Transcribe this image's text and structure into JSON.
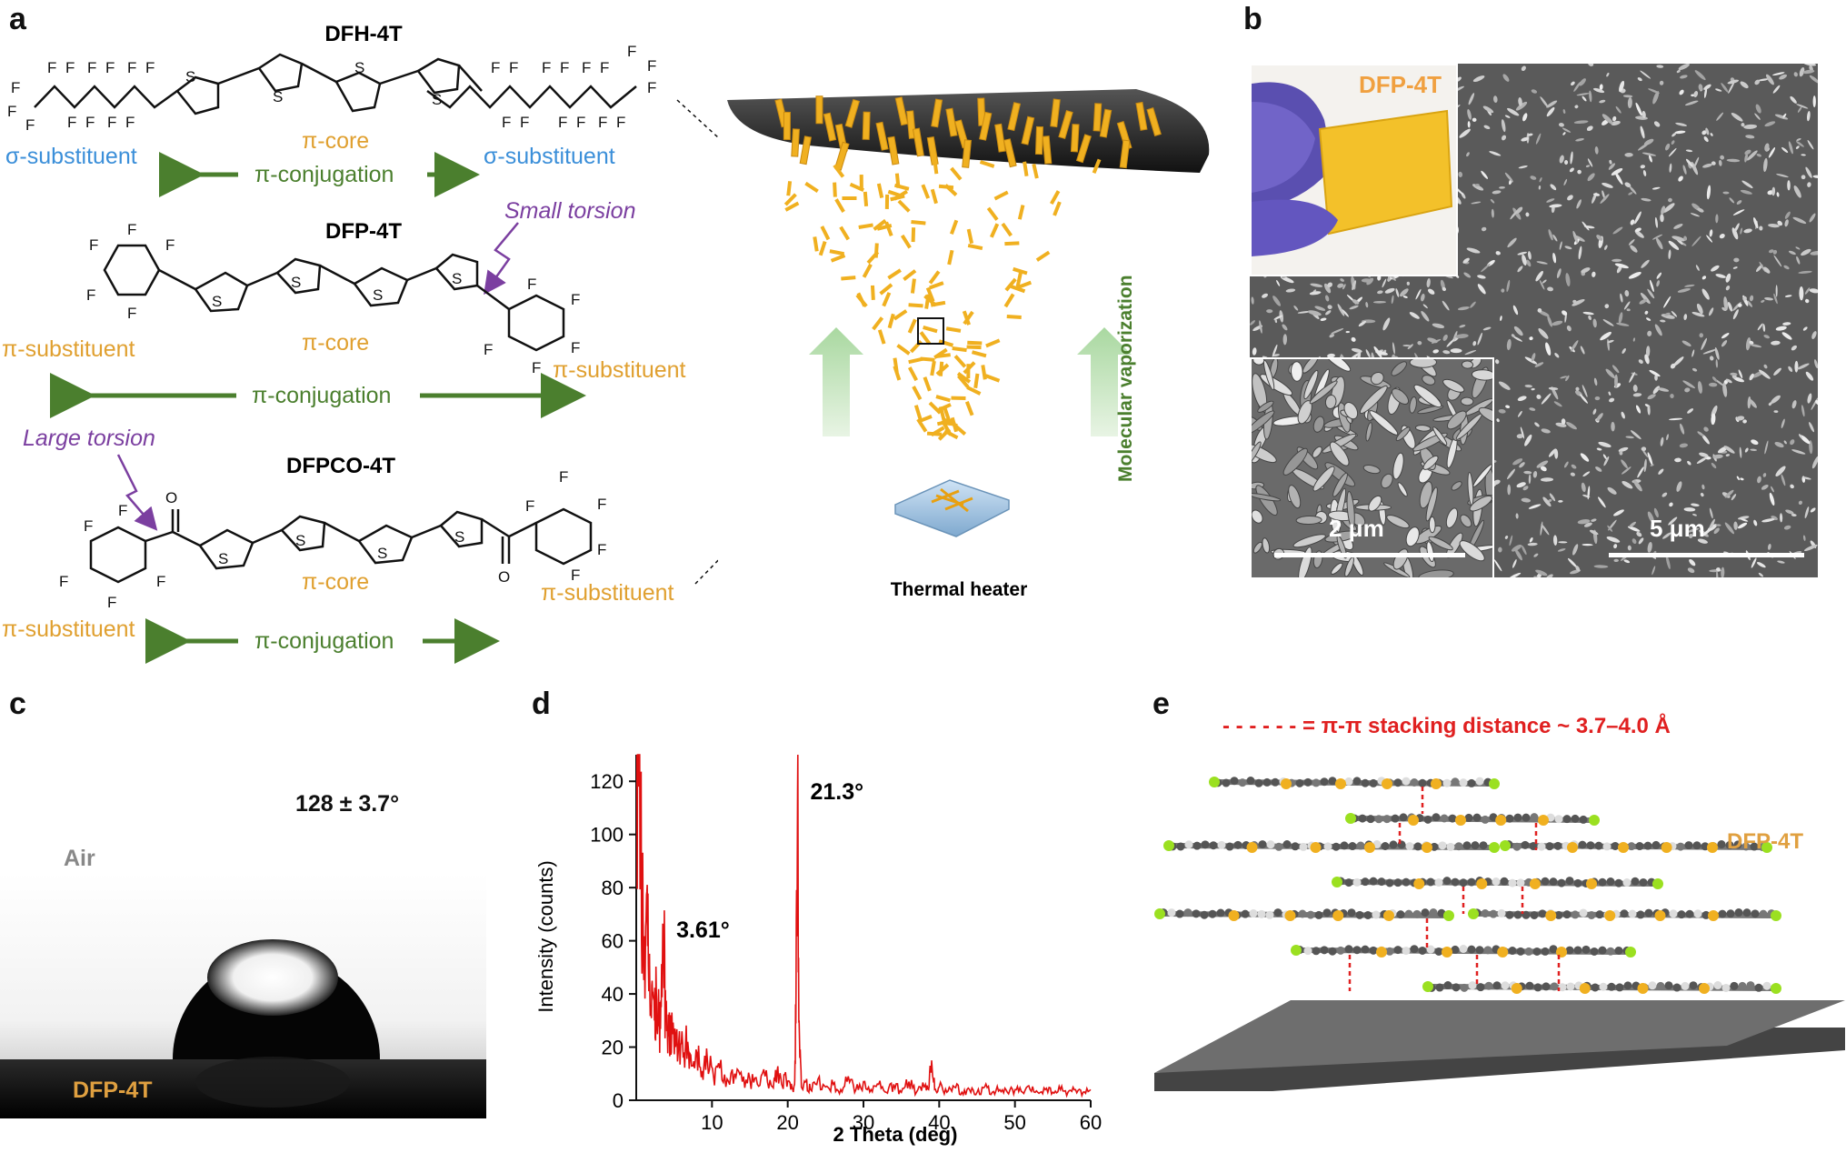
{
  "panels": {
    "a": "a",
    "b": "b",
    "c": "c",
    "d": "d",
    "e": "e"
  },
  "panel_a": {
    "mol1": {
      "name": "DFH-4T",
      "sigma_left": "σ-substituent",
      "core": "π-core",
      "sigma_right": "σ-substituent",
      "conj": "π-conjugation"
    },
    "mol2": {
      "name": "DFP-4T",
      "torsion": "Small torsion",
      "pi_left": "π-substituent",
      "core": "π-core",
      "pi_right": "π-substituent",
      "conj": "π-conjugation"
    },
    "mol3": {
      "name": "DFPCO-4T",
      "torsion": "Large torsion",
      "pi_left": "π-substituent",
      "core": "π-core",
      "pi_right": "π-substituent",
      "conj": "π-conjugation"
    },
    "atom_F": "F",
    "atom_S": "S",
    "atom_O": "O",
    "heater_label": "Thermal heater",
    "vapor_label": "Molecular vaporization",
    "colors": {
      "sigma": "#3b8fd9",
      "core": "#e0a030",
      "conj": "#4b7f2e",
      "torsion": "#7b3fa0",
      "crystal": "#f0b020"
    }
  },
  "panel_b": {
    "film_label": "DFP-4T",
    "scale_small": "2 μm",
    "scale_large": "5 μm"
  },
  "panel_c": {
    "angle": "128 ± 3.7°",
    "air": "Air",
    "substrate": "DFP-4T"
  },
  "panel_e": {
    "legend": "- - - - - - = π-π stacking distance ~ 3.7–4.0 Å",
    "film_label": "DFP-4T"
  },
  "chart_data": {
    "type": "line",
    "xlabel": "2 Theta (deg)",
    "ylabel": "Intensity (counts)",
    "xlim": [
      0,
      60
    ],
    "ylim": [
      0,
      130
    ],
    "xticks": [
      10,
      20,
      30,
      40,
      50,
      60
    ],
    "yticks": [
      0,
      20,
      40,
      60,
      80,
      100,
      120
    ],
    "annotations": [
      {
        "text": "21.3°",
        "x": 21.3,
        "y": 116
      },
      {
        "text": "3.61°",
        "x": 3.61,
        "y": 64
      }
    ],
    "series": [
      {
        "color": "#e01010",
        "x": [
          0.1,
          0.3,
          0.6,
          0.9,
          1.2,
          1.5,
          1.8,
          2.1,
          2.4,
          2.7,
          3.0,
          3.3,
          3.61,
          3.9,
          4.3,
          4.7,
          5.2,
          5.7,
          6.2,
          6.8,
          7.4,
          8.0,
          8.7,
          9.4,
          10.2,
          11.0,
          12.0,
          13.0,
          14.0,
          15.0,
          16.0,
          17.0,
          18.0,
          18.6,
          19.2,
          19.8,
          20.4,
          20.9,
          21.1,
          21.3,
          21.5,
          21.8,
          22.4,
          23.0,
          24.0,
          25.0,
          26.0,
          27.0,
          28.0,
          29.0,
          30.0,
          31.0,
          32.0,
          33.0,
          34.0,
          35.0,
          36.0,
          37.0,
          38.0,
          38.6,
          39.0,
          39.4,
          40.0,
          41.0,
          42.0,
          43.0,
          44.0,
          45.0,
          46.0,
          47.0,
          48.0,
          49.0,
          50.0,
          51.0,
          52.0,
          53.0,
          54.0,
          55.0,
          56.0,
          57.0,
          58.0,
          59.0,
          60.0
        ],
        "y": [
          130,
          118,
          92,
          70,
          52,
          58,
          40,
          45,
          30,
          38,
          28,
          35,
          64,
          30,
          24,
          33,
          20,
          26,
          16,
          22,
          13,
          18,
          11,
          15,
          9,
          12,
          8,
          10,
          7,
          8,
          6,
          9,
          5,
          11,
          6,
          8,
          4,
          6,
          40,
          116,
          30,
          5,
          7,
          4,
          8,
          5,
          6,
          4,
          9,
          4,
          7,
          4,
          6,
          3,
          6,
          3,
          7,
          3,
          5,
          4,
          15,
          4,
          5,
          3,
          5,
          3,
          4,
          3,
          5,
          3,
          4,
          3,
          4,
          3,
          4,
          3,
          4,
          3,
          4,
          3,
          4,
          3,
          4
        ]
      }
    ]
  }
}
